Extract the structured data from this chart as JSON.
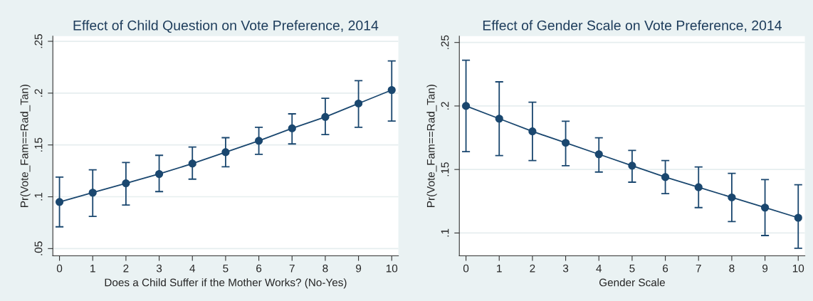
{
  "chart_data": [
    {
      "type": "line",
      "title": "Effect of Child Question on Vote Preference, 2014",
      "xlabel": "Does a Child Suffer if the Mother Works? (No-Yes)",
      "ylabel": "Pr(Vote_Fam==Rad_Tan)",
      "x": [
        0,
        1,
        2,
        3,
        4,
        5,
        6,
        7,
        8,
        9,
        10
      ],
      "series": [
        {
          "color": "#1a476f",
          "values": [
            0.095,
            0.104,
            0.113,
            0.122,
            0.132,
            0.143,
            0.154,
            0.166,
            0.177,
            0.19,
            0.203
          ],
          "errors": [
            [
              0.071,
              0.119
            ],
            [
              0.081,
              0.126
            ],
            [
              0.092,
              0.133
            ],
            [
              0.105,
              0.14
            ],
            [
              0.117,
              0.148
            ],
            [
              0.129,
              0.157
            ],
            [
              0.141,
              0.167
            ],
            [
              0.151,
              0.18
            ],
            [
              0.16,
              0.195
            ],
            [
              0.167,
              0.212
            ],
            [
              0.173,
              0.231
            ]
          ]
        }
      ],
      "xlim": [
        -0.2,
        10.2
      ],
      "xticks": [
        0,
        1,
        2,
        3,
        4,
        5,
        6,
        7,
        8,
        9,
        10
      ],
      "ylim": [
        0.043,
        0.255
      ],
      "yticks": [
        {
          "value": 0.05,
          "label": ".05"
        },
        {
          "value": 0.1,
          "label": ".1"
        },
        {
          "value": 0.15,
          "label": ".15"
        },
        {
          "value": 0.2,
          "label": ".2"
        },
        {
          "value": 0.25,
          "label": ".25"
        }
      ],
      "grid": "y",
      "marker": "circle",
      "line_style": "solid",
      "legend": false
    },
    {
      "type": "line",
      "title": "Effect of Gender Scale on Vote Preference, 2014",
      "xlabel": "Gender Scale",
      "ylabel": "Pr(Vote_Fam==Rad_Tan)",
      "x": [
        0,
        1,
        2,
        3,
        4,
        5,
        6,
        7,
        8,
        9,
        10
      ],
      "series": [
        {
          "color": "#1a476f",
          "values": [
            0.2,
            0.19,
            0.18,
            0.171,
            0.162,
            0.153,
            0.144,
            0.136,
            0.128,
            0.12,
            0.112
          ],
          "errors": [
            [
              0.164,
              0.236
            ],
            [
              0.161,
              0.219
            ],
            [
              0.157,
              0.203
            ],
            [
              0.153,
              0.188
            ],
            [
              0.148,
              0.175
            ],
            [
              0.14,
              0.165
            ],
            [
              0.131,
              0.157
            ],
            [
              0.12,
              0.152
            ],
            [
              0.109,
              0.147
            ],
            [
              0.098,
              0.142
            ],
            [
              0.088,
              0.138
            ]
          ]
        }
      ],
      "xlim": [
        -0.2,
        10.2
      ],
      "xticks": [
        0,
        1,
        2,
        3,
        4,
        5,
        6,
        7,
        8,
        9,
        10
      ],
      "ylim": [
        0.082,
        0.255
      ],
      "yticks": [
        {
          "value": 0.1,
          "label": ".1"
        },
        {
          "value": 0.15,
          "label": ".15"
        },
        {
          "value": 0.2,
          "label": ".2"
        },
        {
          "value": 0.25,
          "label": ".25"
        }
      ],
      "grid": "y",
      "marker": "circle",
      "line_style": "solid",
      "legend": false
    }
  ]
}
